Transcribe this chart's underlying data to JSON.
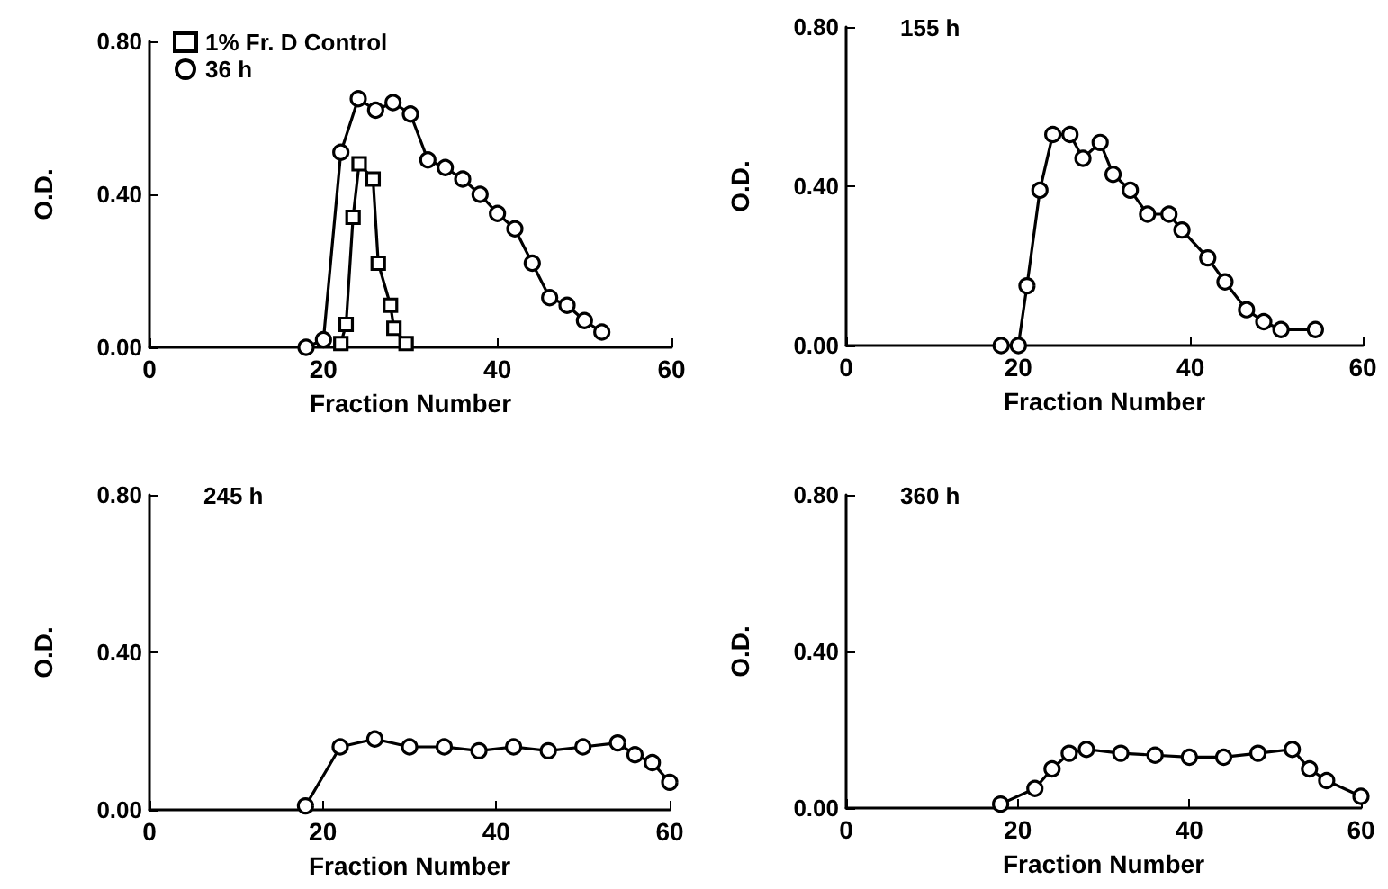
{
  "chart_data": [
    {
      "type": "line",
      "xlabel": "Fraction Number",
      "ylabel": "O.D.",
      "xlim": [
        0,
        60
      ],
      "xticks": [
        0,
        20,
        40,
        60
      ],
      "ylim": [
        0,
        0.8
      ],
      "yticks": [
        {
          "value": 0,
          "label": "0.00"
        },
        {
          "value": 0.4,
          "label": "0.40"
        },
        {
          "value": 0.8,
          "label": "0.80"
        }
      ],
      "grid": false,
      "legend": "top left",
      "line_style": "solid",
      "series": [
        {
          "name": "1% Fr. D Control",
          "color": "#000000",
          "marker": "square",
          "x": [
            22,
            22.6,
            23.4,
            24.1,
            25.7,
            26.3,
            27.7,
            28.1,
            29.5
          ],
          "values": [
            0.01,
            0.06,
            0.34,
            0.48,
            0.44,
            0.22,
            0.11,
            0.05,
            0.01
          ]
        },
        {
          "name": "36 h",
          "color": "#000000",
          "marker": "circle",
          "x": [
            18,
            20,
            22,
            24,
            26,
            28,
            30,
            32,
            34,
            36,
            38,
            40,
            42,
            44,
            46,
            48,
            50,
            52
          ],
          "values": [
            0.0,
            0.02,
            0.51,
            0.65,
            0.62,
            0.64,
            0.61,
            0.49,
            0.47,
            0.44,
            0.4,
            0.35,
            0.31,
            0.22,
            0.13,
            0.11,
            0.07,
            0.04
          ]
        }
      ]
    },
    {
      "type": "line",
      "xlabel": "Fraction Number",
      "ylabel": "O.D.",
      "xlim": [
        0,
        60
      ],
      "xticks": [
        0,
        20,
        40,
        60
      ],
      "ylim": [
        0,
        0.8
      ],
      "yticks": [
        {
          "value": 0,
          "label": "0.00"
        },
        {
          "value": 0.4,
          "label": "0.40"
        },
        {
          "value": 0.8,
          "label": "0.80"
        }
      ],
      "grid": false,
      "legend": "top left",
      "line_style": "solid",
      "series": [
        {
          "name": "155 h",
          "color": "#000000",
          "marker": "circle",
          "x": [
            18,
            20,
            21,
            22.5,
            24,
            26,
            27.5,
            29.5,
            31,
            33,
            35,
            37.5,
            39,
            42,
            44,
            46.5,
            48.5,
            50.5,
            54.5
          ],
          "values": [
            0.0,
            0.0,
            0.15,
            0.39,
            0.53,
            0.53,
            0.47,
            0.51,
            0.43,
            0.39,
            0.33,
            0.33,
            0.29,
            0.22,
            0.16,
            0.09,
            0.06,
            0.04,
            0.04
          ]
        }
      ]
    },
    {
      "type": "line",
      "xlabel": "Fraction Number",
      "ylabel": "O.D.",
      "xlim": [
        0,
        60
      ],
      "xticks": [
        0,
        20,
        40,
        60
      ],
      "ylim": [
        0,
        0.8
      ],
      "yticks": [
        {
          "value": 0,
          "label": "0.00"
        },
        {
          "value": 0.4,
          "label": "0.40"
        },
        {
          "value": 0.8,
          "label": "0.80"
        }
      ],
      "grid": false,
      "legend": "top left",
      "line_style": "solid",
      "series": [
        {
          "name": "245 h",
          "color": "#000000",
          "marker": "circle",
          "x": [
            18,
            22,
            26,
            30,
            34,
            38,
            42,
            46,
            50,
            54,
            56,
            58,
            60
          ],
          "values": [
            0.01,
            0.16,
            0.18,
            0.16,
            0.16,
            0.15,
            0.16,
            0.15,
            0.16,
            0.17,
            0.14,
            0.12,
            0.07
          ]
        }
      ]
    },
    {
      "type": "line",
      "xlabel": "Fraction Number",
      "ylabel": "O.D.",
      "xlim": [
        0,
        60
      ],
      "xticks": [
        0,
        20,
        40,
        60
      ],
      "ylim": [
        0,
        0.8
      ],
      "yticks": [
        {
          "value": 0,
          "label": "0.00"
        },
        {
          "value": 0.4,
          "label": "0.40"
        },
        {
          "value": 0.8,
          "label": "0.80"
        }
      ],
      "grid": false,
      "legend": "top left",
      "line_style": "solid",
      "series": [
        {
          "name": "360 h",
          "color": "#000000",
          "marker": "circle",
          "x": [
            18,
            22,
            24,
            26,
            28,
            32,
            36,
            40,
            44,
            48,
            52,
            54,
            56,
            60
          ],
          "values": [
            0.01,
            0.05,
            0.1,
            0.14,
            0.15,
            0.14,
            0.135,
            0.13,
            0.13,
            0.14,
            0.15,
            0.1,
            0.07,
            0.03
          ]
        }
      ]
    }
  ]
}
